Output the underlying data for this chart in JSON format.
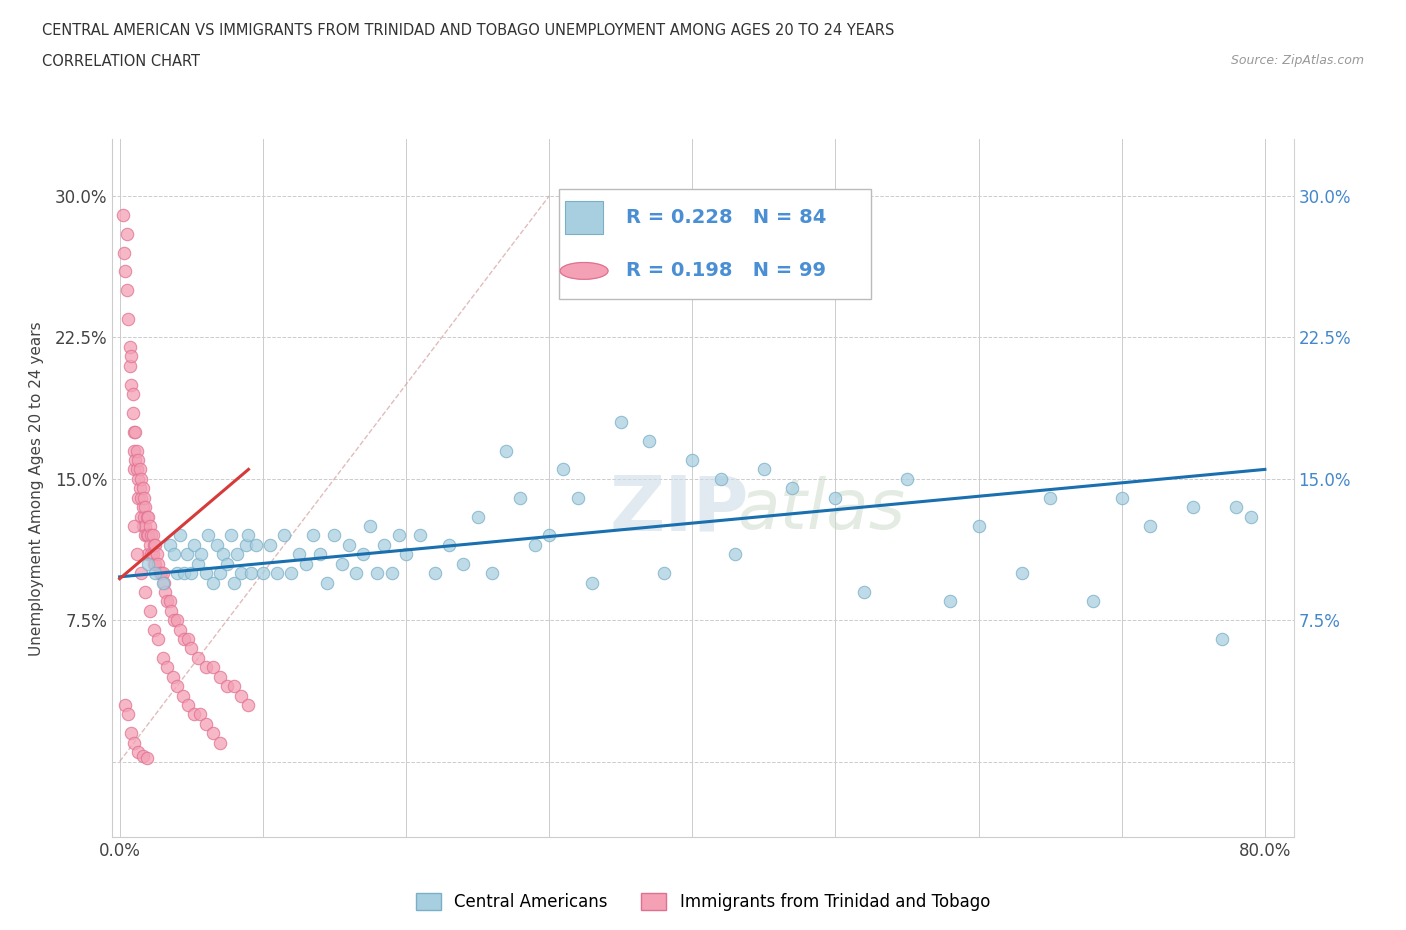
{
  "title_line1": "CENTRAL AMERICAN VS IMMIGRANTS FROM TRINIDAD AND TOBAGO UNEMPLOYMENT AMONG AGES 20 TO 24 YEARS",
  "title_line2": "CORRELATION CHART",
  "source": "Source: ZipAtlas.com",
  "ylabel": "Unemployment Among Ages 20 to 24 years",
  "xlim": [
    -0.005,
    0.82
  ],
  "ylim": [
    -0.04,
    0.33
  ],
  "ytick_vals": [
    0.0,
    0.075,
    0.15,
    0.225,
    0.3
  ],
  "ytick_labels": [
    "",
    "7.5%",
    "15.0%",
    "22.5%",
    "30.0%"
  ],
  "xtick_vals": [
    0.0,
    0.1,
    0.2,
    0.3,
    0.4,
    0.5,
    0.6,
    0.7,
    0.8
  ],
  "xtick_labels": [
    "0.0%",
    "",
    "",
    "",
    "",
    "",
    "",
    "",
    "80.0%"
  ],
  "R_blue": 0.228,
  "N_blue": 84,
  "R_pink": 0.198,
  "N_pink": 99,
  "blue_color": "#a8cfe0",
  "pink_color": "#f4a0b5",
  "blue_line_color": "#1a6faf",
  "pink_line_color": "#d63a3a",
  "watermark_zip": "ZIP",
  "watermark_atlas": "atlas",
  "legend_label_blue": "Central Americans",
  "legend_label_pink": "Immigrants from Trinidad and Tobago",
  "blue_scatter_x": [
    0.02,
    0.025,
    0.03,
    0.035,
    0.038,
    0.04,
    0.042,
    0.045,
    0.047,
    0.05,
    0.052,
    0.055,
    0.057,
    0.06,
    0.062,
    0.065,
    0.068,
    0.07,
    0.072,
    0.075,
    0.078,
    0.08,
    0.082,
    0.085,
    0.088,
    0.09,
    0.092,
    0.095,
    0.1,
    0.105,
    0.11,
    0.115,
    0.12,
    0.125,
    0.13,
    0.135,
    0.14,
    0.145,
    0.15,
    0.155,
    0.16,
    0.165,
    0.17,
    0.175,
    0.18,
    0.185,
    0.19,
    0.195,
    0.2,
    0.21,
    0.22,
    0.23,
    0.24,
    0.25,
    0.26,
    0.27,
    0.28,
    0.29,
    0.3,
    0.31,
    0.32,
    0.33,
    0.35,
    0.37,
    0.38,
    0.4,
    0.42,
    0.43,
    0.45,
    0.47,
    0.5,
    0.52,
    0.55,
    0.58,
    0.6,
    0.63,
    0.65,
    0.68,
    0.7,
    0.72,
    0.75,
    0.77,
    0.78,
    0.79
  ],
  "blue_scatter_y": [
    0.105,
    0.1,
    0.095,
    0.115,
    0.11,
    0.1,
    0.12,
    0.1,
    0.11,
    0.1,
    0.115,
    0.105,
    0.11,
    0.1,
    0.12,
    0.095,
    0.115,
    0.1,
    0.11,
    0.105,
    0.12,
    0.095,
    0.11,
    0.1,
    0.115,
    0.12,
    0.1,
    0.115,
    0.1,
    0.115,
    0.1,
    0.12,
    0.1,
    0.11,
    0.105,
    0.12,
    0.11,
    0.095,
    0.12,
    0.105,
    0.115,
    0.1,
    0.11,
    0.125,
    0.1,
    0.115,
    0.1,
    0.12,
    0.11,
    0.12,
    0.1,
    0.115,
    0.105,
    0.13,
    0.1,
    0.165,
    0.14,
    0.115,
    0.12,
    0.155,
    0.14,
    0.095,
    0.18,
    0.17,
    0.1,
    0.16,
    0.15,
    0.11,
    0.155,
    0.145,
    0.14,
    0.09,
    0.15,
    0.085,
    0.125,
    0.1,
    0.14,
    0.085,
    0.14,
    0.125,
    0.135,
    0.065,
    0.135,
    0.13
  ],
  "pink_scatter_x": [
    0.002,
    0.003,
    0.004,
    0.005,
    0.005,
    0.006,
    0.007,
    0.007,
    0.008,
    0.008,
    0.009,
    0.009,
    0.01,
    0.01,
    0.01,
    0.011,
    0.011,
    0.012,
    0.012,
    0.013,
    0.013,
    0.013,
    0.014,
    0.014,
    0.015,
    0.015,
    0.015,
    0.016,
    0.016,
    0.016,
    0.017,
    0.017,
    0.018,
    0.018,
    0.018,
    0.019,
    0.019,
    0.02,
    0.02,
    0.02,
    0.021,
    0.021,
    0.022,
    0.022,
    0.023,
    0.023,
    0.024,
    0.024,
    0.025,
    0.025,
    0.026,
    0.027,
    0.028,
    0.029,
    0.03,
    0.031,
    0.032,
    0.033,
    0.035,
    0.036,
    0.038,
    0.04,
    0.042,
    0.045,
    0.048,
    0.05,
    0.055,
    0.06,
    0.065,
    0.07,
    0.075,
    0.08,
    0.085,
    0.09,
    0.01,
    0.012,
    0.015,
    0.018,
    0.021,
    0.024,
    0.027,
    0.03,
    0.033,
    0.037,
    0.04,
    0.044,
    0.048,
    0.052,
    0.056,
    0.06,
    0.065,
    0.07,
    0.004,
    0.006,
    0.008,
    0.01,
    0.013,
    0.016,
    0.019
  ],
  "pink_scatter_y": [
    0.29,
    0.27,
    0.26,
    0.28,
    0.25,
    0.235,
    0.22,
    0.21,
    0.215,
    0.2,
    0.195,
    0.185,
    0.175,
    0.165,
    0.155,
    0.175,
    0.16,
    0.165,
    0.155,
    0.16,
    0.15,
    0.14,
    0.155,
    0.145,
    0.15,
    0.14,
    0.13,
    0.145,
    0.135,
    0.125,
    0.14,
    0.13,
    0.135,
    0.125,
    0.12,
    0.13,
    0.12,
    0.13,
    0.12,
    0.11,
    0.125,
    0.115,
    0.12,
    0.11,
    0.12,
    0.11,
    0.115,
    0.105,
    0.115,
    0.105,
    0.11,
    0.105,
    0.1,
    0.1,
    0.1,
    0.095,
    0.09,
    0.085,
    0.085,
    0.08,
    0.075,
    0.075,
    0.07,
    0.065,
    0.065,
    0.06,
    0.055,
    0.05,
    0.05,
    0.045,
    0.04,
    0.04,
    0.035,
    0.03,
    0.125,
    0.11,
    0.1,
    0.09,
    0.08,
    0.07,
    0.065,
    0.055,
    0.05,
    0.045,
    0.04,
    0.035,
    0.03,
    0.025,
    0.025,
    0.02,
    0.015,
    0.01,
    0.03,
    0.025,
    0.015,
    0.01,
    0.005,
    0.003,
    0.002
  ]
}
